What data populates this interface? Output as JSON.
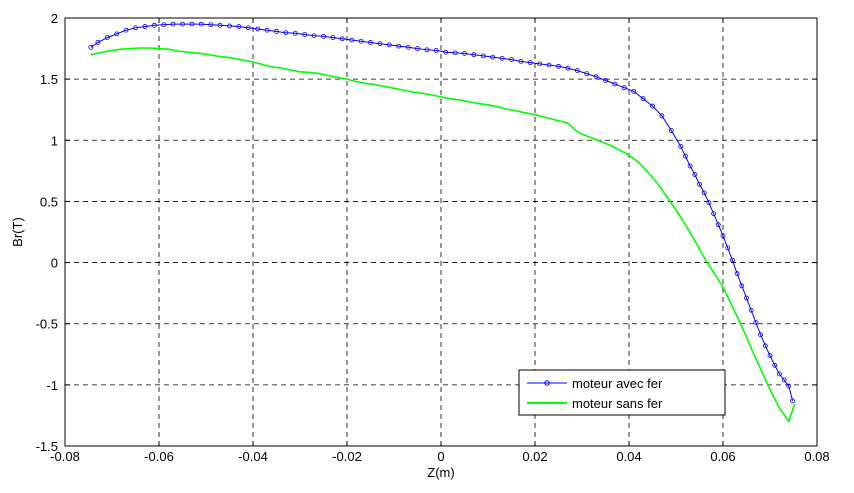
{
  "chart_data": {
    "type": "line",
    "title": "",
    "xlabel": "Z(m)",
    "ylabel": "Br(T)",
    "xlim": [
      -0.08,
      0.08
    ],
    "ylim": [
      -1.5,
      2
    ],
    "xticks": [
      -0.08,
      -0.06,
      -0.04,
      -0.02,
      0,
      0.02,
      0.04,
      0.06,
      0.08
    ],
    "xtick_labels": [
      "-0.08",
      "-0.06",
      "-0.04",
      "-0.02",
      "0",
      "0.02",
      "0.04",
      "0.06",
      "0.08"
    ],
    "yticks": [
      -1.5,
      -1,
      -0.5,
      0,
      0.5,
      1,
      1.5,
      2
    ],
    "ytick_labels": [
      "-1.5",
      "-1",
      "-0.5",
      "0",
      "0.5",
      "1",
      "1.5",
      "2"
    ],
    "grid": true,
    "legend_position": "bottom-right",
    "series": [
      {
        "name": "moteur avec fer",
        "color": "#0000ff",
        "marker": "circle",
        "x": [
          -0.0745,
          -0.073,
          -0.071,
          -0.069,
          -0.067,
          -0.065,
          -0.063,
          -0.061,
          -0.059,
          -0.057,
          -0.055,
          -0.053,
          -0.051,
          -0.049,
          -0.047,
          -0.045,
          -0.043,
          -0.041,
          -0.039,
          -0.037,
          -0.035,
          -0.033,
          -0.031,
          -0.029,
          -0.027,
          -0.025,
          -0.023,
          -0.021,
          -0.019,
          -0.017,
          -0.015,
          -0.013,
          -0.011,
          -0.009,
          -0.007,
          -0.005,
          -0.003,
          -0.001,
          0.001,
          0.003,
          0.005,
          0.007,
          0.009,
          0.011,
          0.013,
          0.015,
          0.017,
          0.019,
          0.021,
          0.023,
          0.025,
          0.027,
          0.029,
          0.031,
          0.033,
          0.035,
          0.037,
          0.039,
          0.041,
          0.043,
          0.045,
          0.047,
          0.049,
          0.051,
          0.052,
          0.053,
          0.054,
          0.055,
          0.056,
          0.057,
          0.058,
          0.059,
          0.06,
          0.061,
          0.062,
          0.063,
          0.064,
          0.065,
          0.066,
          0.067,
          0.068,
          0.069,
          0.07,
          0.071,
          0.072,
          0.073,
          0.074,
          0.0748
        ],
        "y": [
          1.76,
          1.8,
          1.84,
          1.87,
          1.9,
          1.92,
          1.93,
          1.94,
          1.945,
          1.95,
          1.95,
          1.95,
          1.95,
          1.945,
          1.94,
          1.935,
          1.93,
          1.92,
          1.91,
          1.9,
          1.89,
          1.88,
          1.875,
          1.865,
          1.855,
          1.85,
          1.84,
          1.83,
          1.82,
          1.81,
          1.8,
          1.79,
          1.78,
          1.77,
          1.76,
          1.75,
          1.74,
          1.735,
          1.72,
          1.715,
          1.71,
          1.7,
          1.69,
          1.68,
          1.67,
          1.66,
          1.645,
          1.635,
          1.625,
          1.615,
          1.605,
          1.59,
          1.57,
          1.545,
          1.52,
          1.49,
          1.46,
          1.43,
          1.4,
          1.34,
          1.28,
          1.2,
          1.08,
          0.95,
          0.87,
          0.79,
          0.72,
          0.64,
          0.57,
          0.49,
          0.4,
          0.31,
          0.22,
          0.12,
          0.02,
          -0.09,
          -0.19,
          -0.29,
          -0.39,
          -0.49,
          -0.59,
          -0.68,
          -0.76,
          -0.84,
          -0.91,
          -0.96,
          -1.01,
          -1.13
        ]
      },
      {
        "name": "moteur sans fer",
        "color": "#00ff00",
        "marker": "none",
        "x": [
          -0.0745,
          -0.072,
          -0.07,
          -0.068,
          -0.066,
          -0.064,
          -0.062,
          -0.06,
          -0.058,
          -0.056,
          -0.054,
          -0.052,
          -0.05,
          -0.048,
          -0.046,
          -0.044,
          -0.042,
          -0.04,
          -0.038,
          -0.036,
          -0.034,
          -0.032,
          -0.03,
          -0.028,
          -0.026,
          -0.024,
          -0.022,
          -0.02,
          -0.018,
          -0.016,
          -0.014,
          -0.012,
          -0.01,
          -0.008,
          -0.006,
          -0.004,
          -0.002,
          0.0,
          0.002,
          0.004,
          0.006,
          0.008,
          0.01,
          0.012,
          0.014,
          0.016,
          0.018,
          0.02,
          0.022,
          0.024,
          0.026,
          0.027,
          0.029,
          0.03,
          0.032,
          0.034,
          0.036,
          0.038,
          0.04,
          0.042,
          0.044,
          0.046,
          0.048,
          0.05,
          0.052,
          0.054,
          0.056,
          0.058,
          0.06,
          0.062,
          0.064,
          0.066,
          0.068,
          0.07,
          0.072,
          0.074,
          0.0752
        ],
        "y": [
          1.7,
          1.72,
          1.735,
          1.745,
          1.75,
          1.755,
          1.755,
          1.75,
          1.745,
          1.73,
          1.72,
          1.715,
          1.705,
          1.69,
          1.68,
          1.67,
          1.655,
          1.64,
          1.62,
          1.6,
          1.59,
          1.575,
          1.56,
          1.555,
          1.545,
          1.53,
          1.515,
          1.5,
          1.48,
          1.465,
          1.455,
          1.44,
          1.425,
          1.41,
          1.395,
          1.385,
          1.37,
          1.355,
          1.34,
          1.33,
          1.315,
          1.3,
          1.29,
          1.275,
          1.255,
          1.24,
          1.225,
          1.21,
          1.19,
          1.17,
          1.15,
          1.14,
          1.07,
          1.05,
          1.02,
          0.99,
          0.96,
          0.92,
          0.88,
          0.82,
          0.74,
          0.65,
          0.54,
          0.43,
          0.31,
          0.18,
          0.04,
          -0.08,
          -0.2,
          -0.36,
          -0.52,
          -0.7,
          -0.87,
          -1.04,
          -1.19,
          -1.3,
          -1.16
        ]
      }
    ]
  }
}
